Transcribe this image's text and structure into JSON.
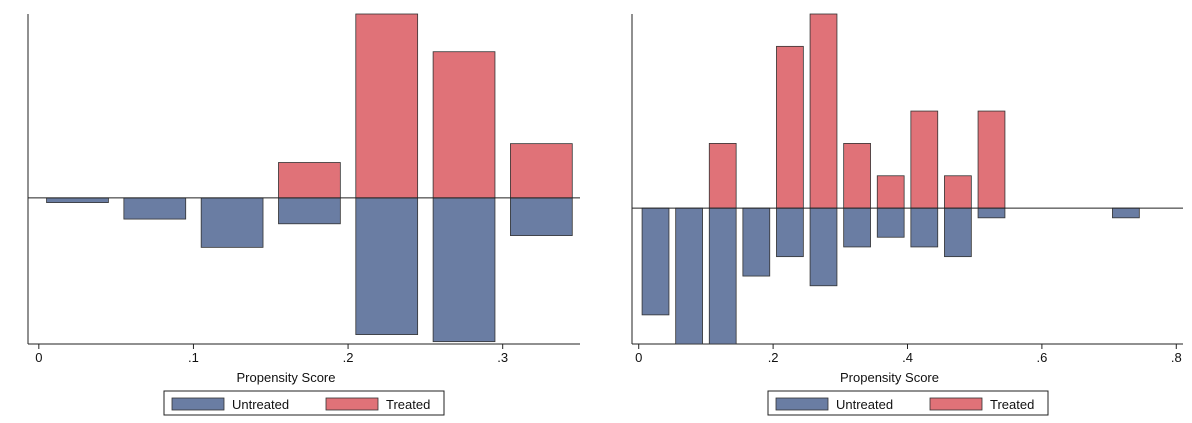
{
  "chart_data": [
    {
      "type": "bar",
      "orientation": "mirrored",
      "xlabel": "Propensity Score",
      "xlim": [
        -0.007,
        0.35
      ],
      "ylim": [
        -0.31,
        0.39
      ],
      "xticks": [
        0,
        0.1,
        0.2,
        0.3
      ],
      "xtick_labels": [
        "0",
        ".1",
        ".2",
        ".3"
      ],
      "bin_width": 0.04,
      "grid": false,
      "legend_position": "bottom",
      "colors": {
        "Untreated": "#6a7da3",
        "Treated": "#e07278"
      },
      "series": [
        {
          "name": "Untreated",
          "direction": "down",
          "x": [
            0.025,
            0.075,
            0.125,
            0.175,
            0.225,
            0.275,
            0.325
          ],
          "values": [
            0.01,
            0.045,
            0.105,
            0.055,
            0.29,
            0.305,
            0.08
          ]
        },
        {
          "name": "Treated",
          "direction": "up",
          "x": [
            0.175,
            0.225,
            0.275,
            0.325
          ],
          "values": [
            0.075,
            0.39,
            0.31,
            0.115
          ]
        }
      ]
    },
    {
      "type": "bar",
      "orientation": "mirrored",
      "xlabel": "Propensity Score",
      "xlim": [
        -0.01,
        0.81
      ],
      "ylim": [
        -0.21,
        0.3
      ],
      "xticks": [
        0,
        0.2,
        0.4,
        0.6,
        0.8
      ],
      "xtick_labels": [
        "0",
        ".2",
        ".4",
        ".6",
        ".8"
      ],
      "bin_width": 0.04,
      "grid": false,
      "legend_position": "bottom",
      "colors": {
        "Untreated": "#6a7da3",
        "Treated": "#e07278"
      },
      "series": [
        {
          "name": "Untreated",
          "direction": "down",
          "x": [
            0.025,
            0.075,
            0.125,
            0.175,
            0.225,
            0.275,
            0.325,
            0.375,
            0.425,
            0.475,
            0.525,
            0.725
          ],
          "values": [
            0.165,
            0.21,
            0.21,
            0.105,
            0.075,
            0.12,
            0.06,
            0.045,
            0.06,
            0.075,
            0.015,
            0.015
          ]
        },
        {
          "name": "Treated",
          "direction": "up",
          "x": [
            0.125,
            0.225,
            0.275,
            0.325,
            0.375,
            0.425,
            0.475,
            0.525
          ],
          "values": [
            0.1,
            0.25,
            0.3,
            0.1,
            0.05,
            0.15,
            0.05,
            0.15
          ]
        }
      ]
    }
  ]
}
